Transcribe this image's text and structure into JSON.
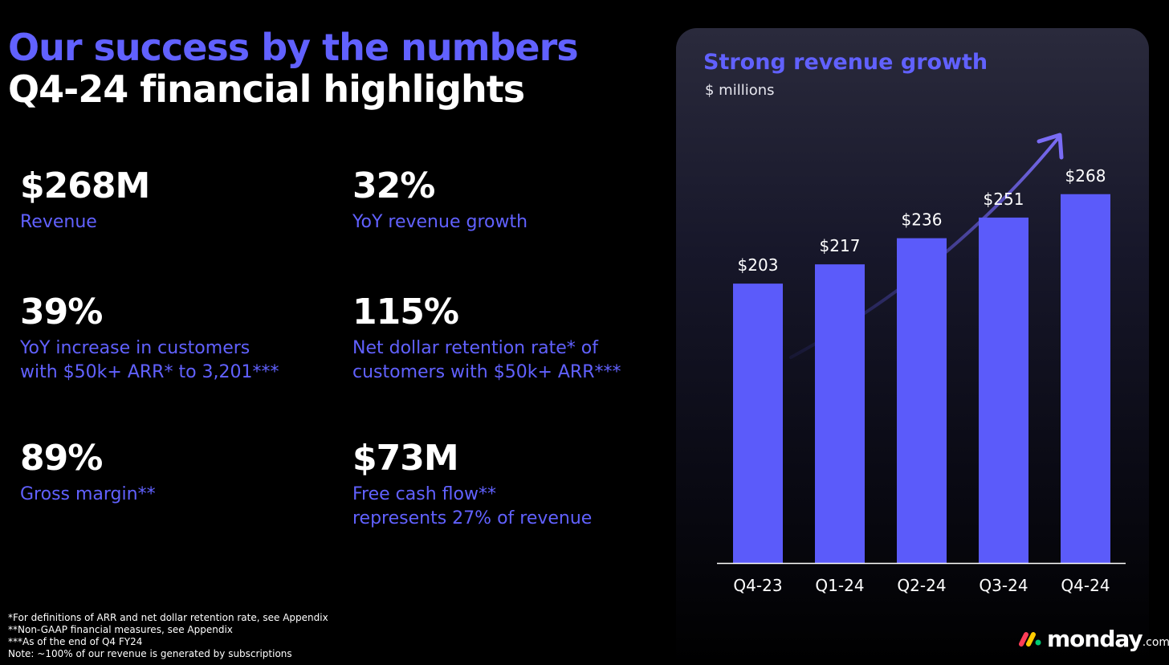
{
  "header": {
    "title": "Our success by the numbers",
    "subtitle": "Q4-24 financial highlights"
  },
  "stats": [
    {
      "value": "$268M",
      "label": "Revenue"
    },
    {
      "value": "32%",
      "label": "YoY revenue growth"
    },
    {
      "value": "39%",
      "label": "YoY increase in customers\nwith $50k+ ARR* to 3,201***"
    },
    {
      "value": "115%",
      "label": "Net dollar retention rate* of\ncustomers with $50k+ ARR***"
    },
    {
      "value": "89%",
      "label": "Gross margin**"
    },
    {
      "value": "$73M",
      "label": "Free cash flow**\nrepresents 27% of revenue"
    }
  ],
  "footnotes": [
    "*For definitions of ARR and net dollar retention rate, see Appendix",
    "**Non-GAAP financial measures, see Appendix",
    "***As of the end of Q4 FY24",
    "Note: ~100% of our revenue is generated by subscriptions"
  ],
  "chart_data": {
    "type": "bar",
    "title": "Strong revenue growth",
    "subtitle": "$ millions",
    "categories": [
      "Q4-23",
      "Q1-24",
      "Q2-24",
      "Q3-24",
      "Q4-24"
    ],
    "values": [
      203,
      217,
      236,
      251,
      268
    ],
    "data_labels": [
      "$203",
      "$217",
      "$236",
      "$251",
      "$268"
    ],
    "ylim": [
      0,
      275
    ],
    "grid": false,
    "legend": "none",
    "annotation": "upward growth arrow above bars",
    "colors": {
      "bar": "#5b5bfa",
      "title": "#6161ff",
      "arrow": "#7a6cf5"
    }
  },
  "brand": {
    "name": "monday",
    "suffix": ".com",
    "colors": [
      "#ff3d57",
      "#ffcb00",
      "#00ca72"
    ]
  },
  "colors": {
    "accent": "#6161ff",
    "background": "#000000"
  }
}
